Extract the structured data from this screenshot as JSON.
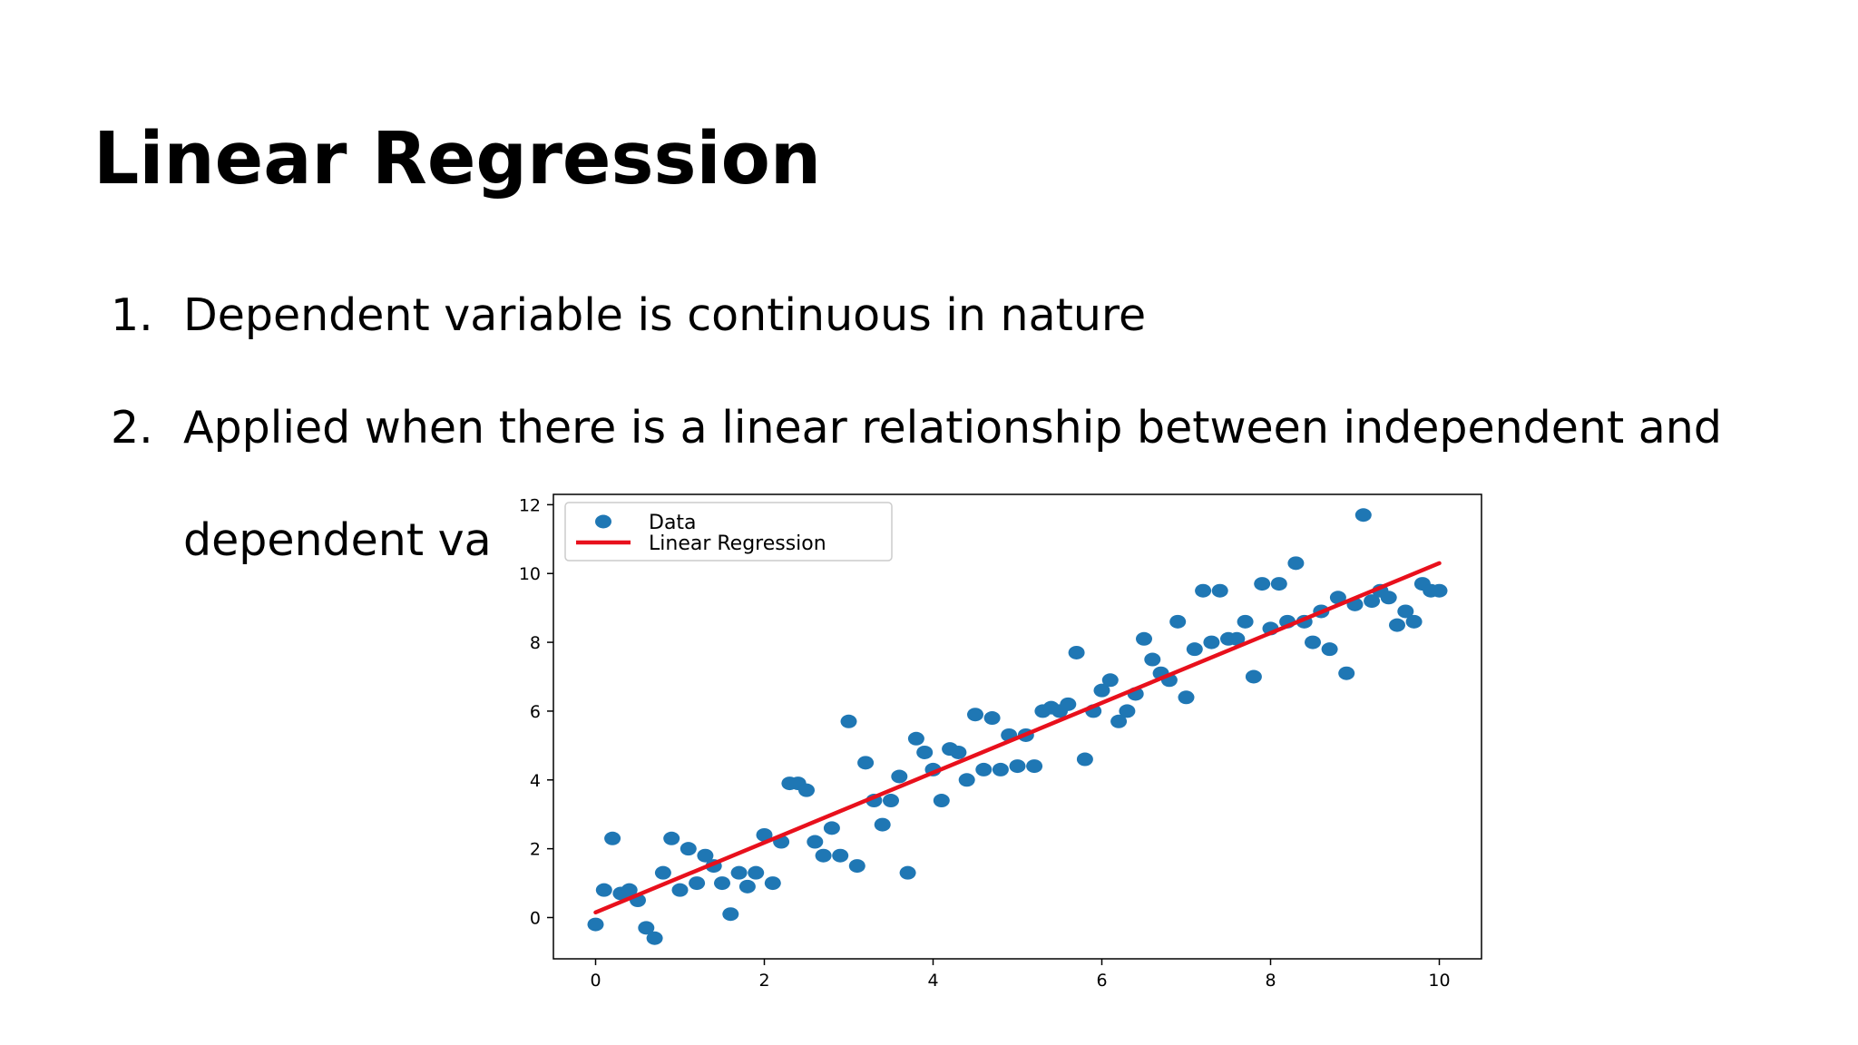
{
  "slide": {
    "title": "Linear Regression",
    "bullets": [
      {
        "num": "1.",
        "text": "Dependent variable is continuous in nature"
      },
      {
        "num": "2.",
        "text": "Applied when there is a linear relationship between independent and",
        "continuation": "dependent var"
      }
    ]
  },
  "chart_data": {
    "type": "scatter",
    "title": "",
    "xlabel": "",
    "ylabel": "",
    "xlim": [
      -0.5,
      10.5
    ],
    "ylim": [
      -1.2,
      12.3
    ],
    "x_ticks": [
      0,
      2,
      4,
      6,
      8,
      10
    ],
    "y_ticks": [
      0,
      2,
      4,
      6,
      8,
      10,
      12
    ],
    "grid": false,
    "legend_position": "upper-left",
    "colors": {
      "data": "#1f77b4",
      "line": "#e8101c"
    },
    "series": [
      {
        "name": "Data",
        "kind": "scatter",
        "x": [
          0.0,
          0.1,
          0.2,
          0.3,
          0.4,
          0.5,
          0.6,
          0.7,
          0.8,
          0.9,
          1.0,
          1.1,
          1.2,
          1.3,
          1.4,
          1.5,
          1.6,
          1.7,
          1.8,
          1.9,
          2.0,
          2.1,
          2.2,
          2.3,
          2.4,
          2.5,
          2.6,
          2.7,
          2.8,
          2.9,
          3.0,
          3.1,
          3.2,
          3.3,
          3.4,
          3.5,
          3.6,
          3.7,
          3.8,
          3.9,
          4.0,
          4.1,
          4.2,
          4.3,
          4.4,
          4.5,
          4.6,
          4.7,
          4.8,
          4.9,
          5.0,
          5.1,
          5.2,
          5.3,
          5.4,
          5.5,
          5.6,
          5.7,
          5.8,
          5.9,
          6.0,
          6.1,
          6.2,
          6.3,
          6.4,
          6.5,
          6.6,
          6.7,
          6.8,
          6.9,
          7.0,
          7.1,
          7.2,
          7.3,
          7.4,
          7.5,
          7.6,
          7.7,
          7.8,
          7.9,
          8.0,
          8.1,
          8.2,
          8.3,
          8.4,
          8.5,
          8.6,
          8.7,
          8.8,
          8.9,
          9.0,
          9.1,
          9.2,
          9.3,
          9.4,
          9.5,
          9.6,
          9.7,
          9.8,
          9.9,
          10.0
        ],
        "y": [
          -0.2,
          0.8,
          2.3,
          0.7,
          0.8,
          0.5,
          -0.3,
          -0.6,
          1.3,
          2.3,
          0.8,
          2.0,
          1.0,
          1.8,
          1.5,
          1.0,
          0.1,
          1.3,
          0.9,
          1.3,
          2.4,
          1.0,
          2.2,
          3.9,
          3.9,
          3.7,
          2.2,
          1.8,
          2.6,
          1.8,
          5.7,
          1.5,
          4.5,
          3.4,
          2.7,
          3.4,
          4.1,
          1.3,
          5.2,
          4.8,
          4.3,
          3.4,
          4.9,
          4.8,
          4.0,
          5.9,
          4.3,
          5.8,
          4.3,
          5.3,
          4.4,
          5.3,
          4.4,
          6.0,
          6.1,
          6.0,
          6.2,
          7.7,
          4.6,
          6.0,
          6.6,
          6.9,
          5.7,
          6.0,
          6.5,
          8.1,
          7.5,
          7.1,
          6.9,
          8.6,
          6.4,
          7.8,
          9.5,
          8.0,
          9.5,
          8.1,
          8.1,
          8.6,
          7.0,
          9.7,
          8.4,
          9.7,
          8.6,
          10.3,
          8.6,
          8.0,
          8.9,
          7.8,
          9.3,
          7.1,
          9.1,
          11.7,
          9.2,
          9.5,
          9.3,
          8.5,
          8.9,
          8.6,
          9.7,
          9.5,
          9.5
        ]
      },
      {
        "name": "Linear Regression",
        "kind": "line",
        "x": [
          0,
          10
        ],
        "y": [
          0.15,
          10.3
        ]
      }
    ]
  }
}
